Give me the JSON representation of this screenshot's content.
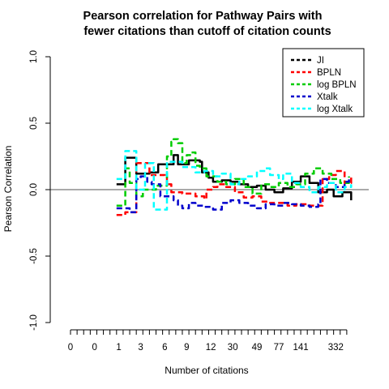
{
  "chart_data": {
    "type": "line",
    "title_line1": "Pearson correlation for Pathway Pairs with",
    "title_line2": "fewer citations than cutoff of citation counts",
    "xlabel": "Number of citations",
    "ylabel": "Pearson Correlation",
    "ylim": [
      -1.0,
      1.0
    ],
    "yticks": [
      {
        "value": 1.0,
        "label": "1.0"
      },
      {
        "value": 0.5,
        "label": "0.5"
      },
      {
        "value": 0.0,
        "label": "0.0"
      },
      {
        "value": -0.5,
        "label": "-0.5"
      },
      {
        "value": -1.0,
        "label": "-1.0"
      }
    ],
    "xrange": [
      1,
      130
    ],
    "xticks": {
      "positions": [
        1,
        4,
        7,
        10,
        13,
        16,
        19,
        22,
        25,
        28,
        31,
        34,
        37,
        40,
        43,
        46,
        49,
        52,
        55,
        58,
        61,
        64,
        67,
        70,
        73,
        76,
        79,
        82,
        85,
        88,
        91,
        94,
        97,
        100,
        103,
        106,
        109,
        112,
        115,
        118,
        121,
        124,
        127
      ],
      "labels": [
        {
          "pos": 1,
          "label": "0"
        },
        {
          "pos": 12,
          "label": "0"
        },
        {
          "pos": 23,
          "label": "1"
        },
        {
          "pos": 33,
          "label": "3"
        },
        {
          "pos": 44,
          "label": "6"
        },
        {
          "pos": 54,
          "label": "9"
        },
        {
          "pos": 65,
          "label": "12"
        },
        {
          "pos": 75,
          "label": "30"
        },
        {
          "pos": 86,
          "label": "49"
        },
        {
          "pos": 96,
          "label": "77"
        },
        {
          "pos": 106,
          "label": "141"
        },
        {
          "pos": 122,
          "label": "332"
        }
      ]
    },
    "reference_line": 0,
    "legend": {
      "position": "top-right"
    },
    "series": [
      {
        "name": "JI",
        "color": "#000000",
        "width": 2.5,
        "points": [
          [
            22,
            0.04
          ],
          [
            25,
            0.04
          ],
          [
            26,
            0.24
          ],
          [
            30,
            0.24
          ],
          [
            31,
            0.12
          ],
          [
            36,
            0.12
          ],
          [
            37,
            0.13
          ],
          [
            40,
            0.13
          ],
          [
            41,
            0.19
          ],
          [
            47,
            0.19
          ],
          [
            48,
            0.26
          ],
          [
            49,
            0.26
          ],
          [
            50,
            0.19
          ],
          [
            54,
            0.19
          ],
          [
            55,
            0.22
          ],
          [
            60,
            0.21
          ],
          [
            61,
            0.13
          ],
          [
            64,
            0.09
          ],
          [
            66,
            0.06
          ],
          [
            70,
            0.07
          ],
          [
            74,
            0.06
          ],
          [
            78,
            0.04
          ],
          [
            82,
            0.02
          ],
          [
            86,
            0.03
          ],
          [
            90,
            0.0
          ],
          [
            94,
            -0.02
          ],
          [
            98,
            0.01
          ],
          [
            102,
            0.06
          ],
          [
            106,
            0.1
          ],
          [
            110,
            0.05
          ],
          [
            114,
            -0.02
          ],
          [
            118,
            0.0
          ],
          [
            121,
            -0.05
          ],
          [
            125,
            -0.02
          ],
          [
            129,
            -0.08
          ]
        ]
      },
      {
        "name": "BPLN",
        "color": "#ff0000",
        "width": 2.5,
        "points": [
          [
            22,
            -0.19
          ],
          [
            25,
            -0.19
          ],
          [
            26,
            -0.17
          ],
          [
            30,
            -0.17
          ],
          [
            31,
            0.2
          ],
          [
            36,
            0.2
          ],
          [
            37,
            0.11
          ],
          [
            44,
            0.1
          ],
          [
            45,
            0.04
          ],
          [
            47,
            -0.02
          ],
          [
            52,
            -0.03
          ],
          [
            58,
            -0.05
          ],
          [
            62,
            -0.07
          ],
          [
            63,
            0.0
          ],
          [
            66,
            0.02
          ],
          [
            68,
            0.04
          ],
          [
            72,
            0.02
          ],
          [
            76,
            -0.02
          ],
          [
            80,
            -0.06
          ],
          [
            84,
            -0.05
          ],
          [
            88,
            -0.09
          ],
          [
            92,
            -0.1
          ],
          [
            96,
            -0.1
          ],
          [
            100,
            -0.12
          ],
          [
            104,
            -0.11
          ],
          [
            110,
            -0.12
          ],
          [
            114,
            -0.12
          ],
          [
            116,
            0.08
          ],
          [
            119,
            0.11
          ],
          [
            122,
            0.14
          ],
          [
            126,
            0.05
          ],
          [
            129,
            0.1
          ]
        ]
      },
      {
        "name": "log BPLN",
        "color": "#00cc00",
        "width": 2.5,
        "points": [
          [
            22,
            -0.12
          ],
          [
            25,
            -0.12
          ],
          [
            26,
            0.16
          ],
          [
            27,
            0.16
          ],
          [
            28,
            0.05
          ],
          [
            30,
            0.05
          ],
          [
            31,
            -0.05
          ],
          [
            33,
            -0.05
          ],
          [
            34,
            0.0
          ],
          [
            40,
            0.03
          ],
          [
            45,
            0.25
          ],
          [
            47,
            0.36
          ],
          [
            48,
            0.38
          ],
          [
            50,
            0.35
          ],
          [
            52,
            0.2
          ],
          [
            54,
            0.26
          ],
          [
            56,
            0.28
          ],
          [
            58,
            0.18
          ],
          [
            60,
            0.16
          ],
          [
            63,
            0.1
          ],
          [
            68,
            0.06
          ],
          [
            72,
            0.04
          ],
          [
            76,
            0.08
          ],
          [
            80,
            0.02
          ],
          [
            84,
            -0.03
          ],
          [
            88,
            0.04
          ],
          [
            92,
            0.02
          ],
          [
            96,
            0.05
          ],
          [
            100,
            0.02
          ],
          [
            104,
            0.04
          ],
          [
            108,
            0.12
          ],
          [
            112,
            0.16
          ],
          [
            116,
            0.12
          ],
          [
            120,
            0.08
          ],
          [
            124,
            0.05
          ],
          [
            128,
            0.1
          ]
        ]
      },
      {
        "name": "Xtalk",
        "color": "#0000cc",
        "width": 2.5,
        "points": [
          [
            22,
            -0.14
          ],
          [
            27,
            -0.14
          ],
          [
            28,
            -0.17
          ],
          [
            30,
            -0.17
          ],
          [
            31,
            0.08
          ],
          [
            33,
            0.1
          ],
          [
            35,
            0.1
          ],
          [
            36,
            0.06
          ],
          [
            38,
            0.04
          ],
          [
            40,
            0.04
          ],
          [
            42,
            -0.05
          ],
          [
            46,
            -0.05
          ],
          [
            48,
            -0.08
          ],
          [
            50,
            -0.12
          ],
          [
            52,
            -0.14
          ],
          [
            55,
            -0.1
          ],
          [
            58,
            -0.12
          ],
          [
            62,
            -0.13
          ],
          [
            66,
            -0.15
          ],
          [
            70,
            -0.1
          ],
          [
            74,
            -0.08
          ],
          [
            78,
            -0.1
          ],
          [
            82,
            -0.12
          ],
          [
            86,
            -0.14
          ],
          [
            90,
            -0.11
          ],
          [
            94,
            -0.12
          ],
          [
            98,
            -0.1
          ],
          [
            102,
            -0.11
          ],
          [
            106,
            -0.12
          ],
          [
            110,
            -0.13
          ],
          [
            114,
            -0.11
          ],
          [
            115,
            0.08
          ],
          [
            118,
            0.05
          ],
          [
            122,
            0.02
          ],
          [
            126,
            0.06
          ],
          [
            128,
            0.08
          ]
        ]
      },
      {
        "name": "log Xtalk",
        "color": "#00ffff",
        "width": 2.5,
        "points": [
          [
            22,
            0.08
          ],
          [
            25,
            0.08
          ],
          [
            26,
            0.29
          ],
          [
            30,
            0.29
          ],
          [
            31,
            0.0
          ],
          [
            34,
            0.0
          ],
          [
            35,
            0.2
          ],
          [
            38,
            0.2
          ],
          [
            39,
            -0.15
          ],
          [
            44,
            -0.15
          ],
          [
            45,
            0.21
          ],
          [
            51,
            0.21
          ],
          [
            52,
            0.17
          ],
          [
            57,
            0.17
          ],
          [
            58,
            0.13
          ],
          [
            62,
            0.14
          ],
          [
            66,
            0.1
          ],
          [
            70,
            0.12
          ],
          [
            74,
            0.04
          ],
          [
            78,
            0.08
          ],
          [
            82,
            0.1
          ],
          [
            86,
            0.14
          ],
          [
            90,
            0.16
          ],
          [
            92,
            0.11
          ],
          [
            96,
            0.08
          ],
          [
            98,
            0.12
          ],
          [
            102,
            0.05
          ],
          [
            106,
            0.02
          ],
          [
            110,
            -0.02
          ],
          [
            114,
            0.02
          ],
          [
            118,
            0.05
          ],
          [
            122,
            -0.02
          ],
          [
            126,
            0.02
          ],
          [
            129,
            0.04
          ]
        ]
      }
    ]
  }
}
